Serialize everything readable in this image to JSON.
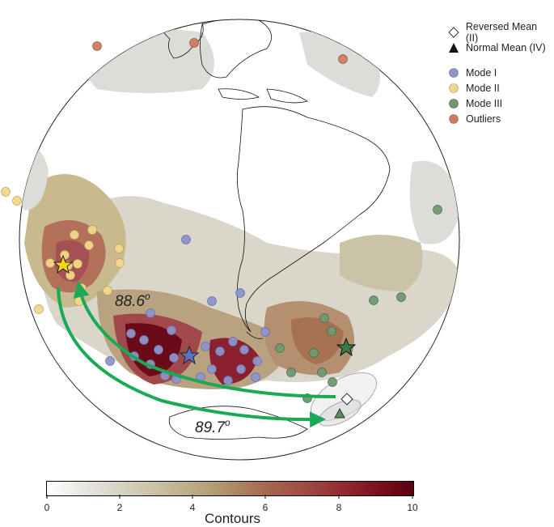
{
  "legend": {
    "reversed_mean": "Reversed Mean (II)",
    "normal_mean": "Normal Mean (IV)",
    "mode1": "Mode I",
    "mode2": "Mode II",
    "mode3": "Mode III",
    "outliers": "Outliers"
  },
  "colors": {
    "mode1": "#8e93c9",
    "mode2": "#f1d78a",
    "mode3": "#6f9a70",
    "outliers": "#cf7a62",
    "arrow": "#1aaa55"
  },
  "annotations": {
    "angle_1": "88.6",
    "angle_2": "89.7",
    "degree_symbol": "o"
  },
  "colorbar": {
    "title": "Contours",
    "min": 0,
    "max": 10,
    "tick_labels": [
      "0",
      "2",
      "4",
      "6",
      "8",
      "10"
    ]
  }
}
